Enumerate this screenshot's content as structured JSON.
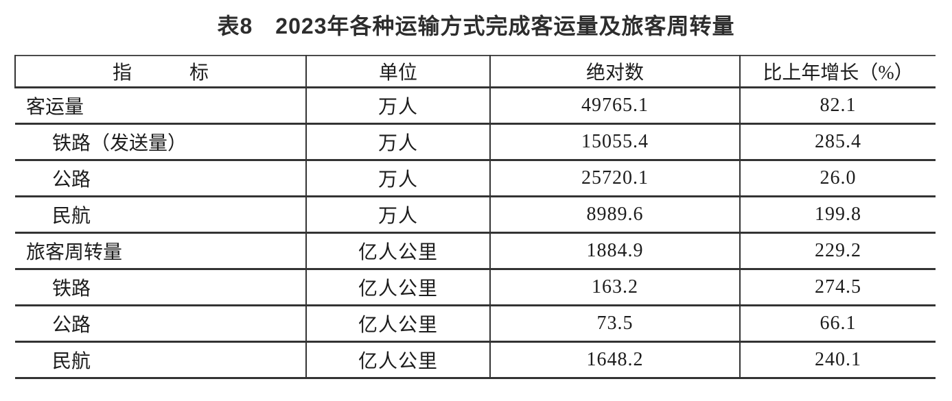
{
  "title": "表8　2023年各种运输方式完成客运量及旅客周转量",
  "table": {
    "columns": {
      "indicator": "指　　　标",
      "unit": "单位",
      "absolute": "绝对数",
      "growth": "比上年增长（%）"
    },
    "rows": [
      {
        "indicator": "客运量",
        "unit": "万人",
        "absolute": "49765.1",
        "growth": "82.1",
        "indent": false
      },
      {
        "indicator": "铁路（发送量）",
        "unit": "万人",
        "absolute": "15055.4",
        "growth": "285.4",
        "indent": true
      },
      {
        "indicator": "公路",
        "unit": "万人",
        "absolute": "25720.1",
        "growth": "26.0",
        "indent": true
      },
      {
        "indicator": "民航",
        "unit": "万人",
        "absolute": "8989.6",
        "growth": "199.8",
        "indent": true
      },
      {
        "indicator": "旅客周转量",
        "unit": "亿人公里",
        "absolute": "1884.9",
        "growth": "229.2",
        "indent": false
      },
      {
        "indicator": "铁路",
        "unit": "亿人公里",
        "absolute": "163.2",
        "growth": "274.5",
        "indent": true
      },
      {
        "indicator": "公路",
        "unit": "亿人公里",
        "absolute": "73.5",
        "growth": "66.1",
        "indent": true
      },
      {
        "indicator": "民航",
        "unit": "亿人公里",
        "absolute": "1648.2",
        "growth": "240.1",
        "indent": true
      }
    ]
  },
  "colors": {
    "border": "#333333",
    "text": "#1c1c1c",
    "title": "#2d2d2d",
    "background": "#ffffff"
  }
}
